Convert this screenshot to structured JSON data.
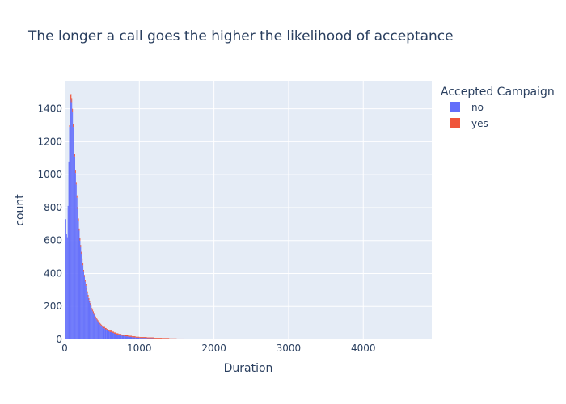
{
  "chart_data": {
    "type": "bar",
    "title": "The longer a call goes the higher the likelihood of acceptance",
    "xlabel": "Duration",
    "ylabel": "count",
    "xlim": [
      0,
      4918
    ],
    "ylim": [
      0,
      1570
    ],
    "x_ticks": [
      "0",
      "1000",
      "2000",
      "3000",
      "4000"
    ],
    "y_ticks": [
      "0",
      "200",
      "400",
      "600",
      "800",
      "1000",
      "1200",
      "1400"
    ],
    "bin_width": 10,
    "barmode": "stack",
    "grid": true,
    "legend": {
      "title": "Accepted Campaign",
      "placement": "top-right"
    },
    "series": [
      {
        "name": "no",
        "color": "#636efa",
        "x": [
          0,
          10,
          20,
          30,
          40,
          50,
          60,
          70,
          80,
          90,
          100,
          110,
          120,
          130,
          140,
          150,
          160,
          170,
          180,
          190,
          200,
          210,
          220,
          230,
          240,
          250,
          260,
          270,
          280,
          290,
          300,
          310,
          320,
          330,
          340,
          350,
          360,
          370,
          380,
          390,
          400,
          410,
          420,
          430,
          440,
          450,
          460,
          470,
          480,
          490,
          500,
          520,
          540,
          560,
          580,
          600,
          630,
          660,
          690,
          720,
          760,
          800,
          850,
          900,
          950,
          1000,
          1100,
          1200,
          1300,
          1400,
          1500,
          1600,
          1700,
          1800,
          1900,
          2000
        ],
        "values": [
          280,
          730,
          640,
          620,
          810,
          1080,
          1290,
          1440,
          1455,
          1440,
          1380,
          1290,
          1190,
          1110,
          1010,
          940,
          860,
          790,
          720,
          660,
          600,
          560,
          520,
          480,
          450,
          410,
          380,
          350,
          325,
          300,
          280,
          260,
          240,
          225,
          210,
          195,
          180,
          170,
          160,
          150,
          140,
          130,
          122,
          115,
          108,
          101,
          95,
          90,
          85,
          80,
          75,
          68,
          61,
          55,
          50,
          45,
          40,
          35,
          30,
          26,
          22,
          19,
          16,
          13,
          11,
          9,
          7,
          5,
          4,
          3,
          2,
          2,
          1,
          1,
          1,
          1
        ]
      },
      {
        "name": "yes",
        "color": "#ef553b",
        "x": [
          0,
          10,
          20,
          30,
          40,
          50,
          60,
          70,
          80,
          90,
          100,
          110,
          120,
          130,
          140,
          150,
          160,
          170,
          180,
          190,
          200,
          210,
          220,
          230,
          240,
          250,
          260,
          270,
          280,
          290,
          300,
          310,
          320,
          330,
          340,
          350,
          360,
          370,
          380,
          390,
          400,
          410,
          420,
          430,
          440,
          450,
          460,
          470,
          480,
          490,
          500,
          520,
          540,
          560,
          580,
          600,
          630,
          660,
          690,
          720,
          760,
          800,
          850,
          900,
          950,
          1000,
          1100,
          1200,
          1300,
          1400,
          1500,
          1600,
          1700,
          1800,
          1900,
          2000
        ],
        "values": [
          0,
          0,
          0,
          0,
          0,
          0,
          10,
          45,
          35,
          25,
          20,
          20,
          18,
          16,
          15,
          15,
          15,
          14,
          14,
          13,
          13,
          13,
          12,
          12,
          12,
          12,
          11,
          11,
          11,
          11,
          11,
          10,
          10,
          10,
          10,
          10,
          10,
          10,
          10,
          10,
          9,
          9,
          9,
          9,
          9,
          9,
          8,
          8,
          8,
          8,
          8,
          8,
          8,
          8,
          8,
          8,
          7,
          7,
          7,
          7,
          7,
          6,
          6,
          6,
          5,
          5,
          5,
          4,
          4,
          3,
          3,
          2,
          2,
          2,
          1,
          1
        ]
      }
    ]
  }
}
